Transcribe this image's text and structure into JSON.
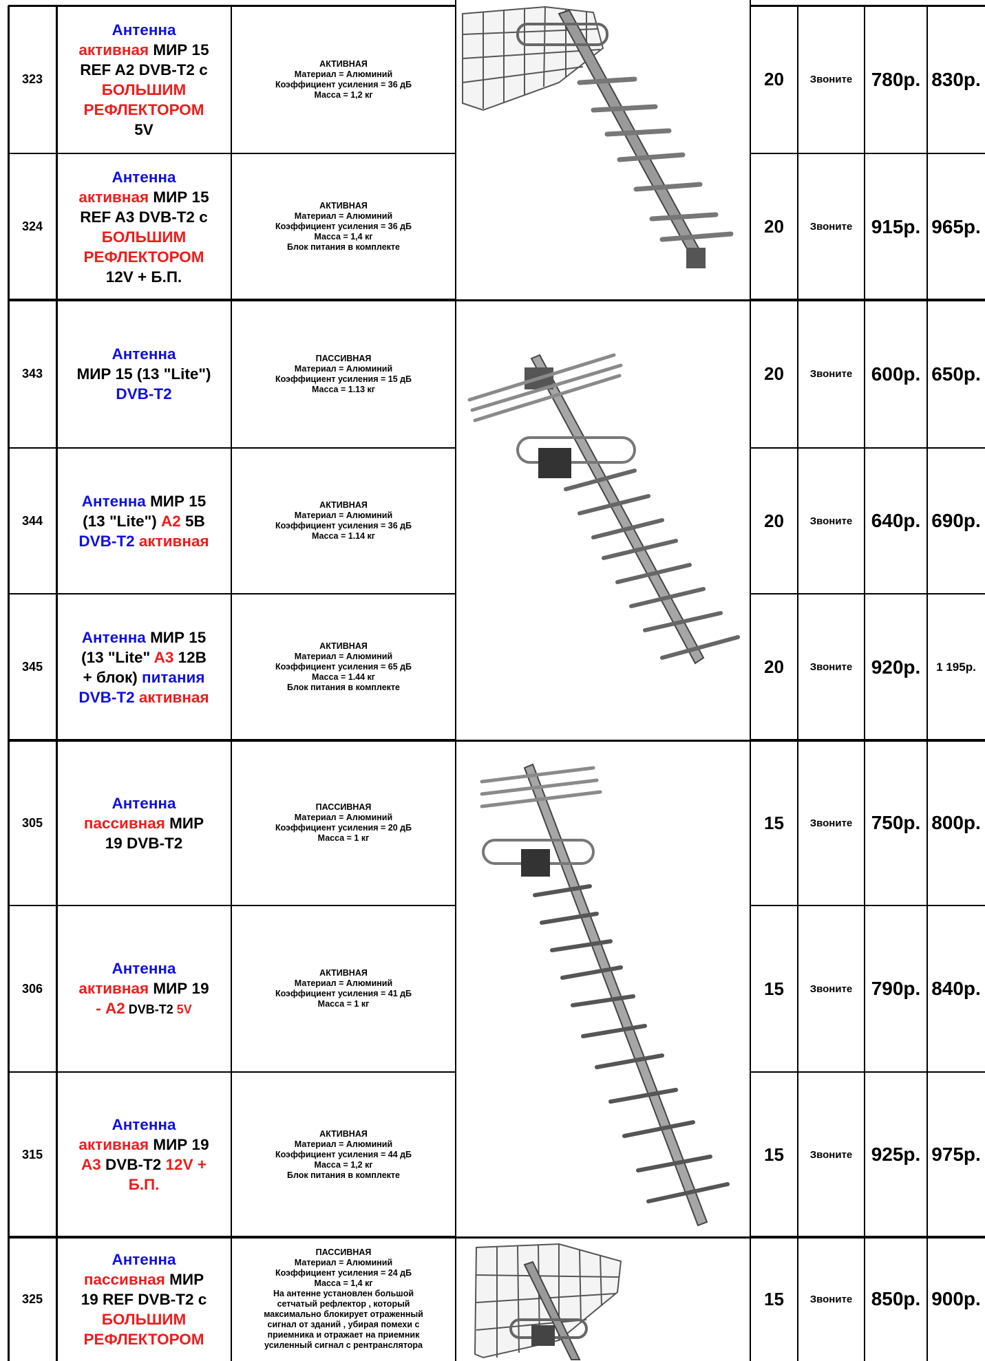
{
  "currency_note": "",
  "rows": [
    {
      "num": "323",
      "name": [
        {
          "t": "Антенна",
          "c": "b"
        },
        {
          "br": true
        },
        {
          "t": "активная",
          "c": "r"
        },
        {
          "t": " МИР 15",
          "c": "k"
        },
        {
          "br": true
        },
        {
          "t": "REF A2 DVB-T2 с",
          "c": "k"
        },
        {
          "br": true
        },
        {
          "t": "БОЛЬШИМ",
          "c": "r"
        },
        {
          "br": true
        },
        {
          "t": "РЕФЛЕКТОРОМ",
          "c": "r"
        },
        {
          "br": true
        },
        {
          "t": "5V",
          "c": "k"
        }
      ],
      "desc": [
        "АКТИВНАЯ",
        "Материал = Алюминий",
        "Коэффициент усиления = 36 дБ",
        "Масса = 1,2 кг"
      ],
      "qty": "20",
      "call": "Звоните",
      "price1": "780р.",
      "price2": "830р."
    },
    {
      "num": "324",
      "name": [
        {
          "t": "Антенна",
          "c": "b"
        },
        {
          "br": true
        },
        {
          "t": "активная",
          "c": "r"
        },
        {
          "t": " МИР 15",
          "c": "k"
        },
        {
          "br": true
        },
        {
          "t": "REF A3 DVB-T2 с",
          "c": "k"
        },
        {
          "br": true
        },
        {
          "t": "БОЛЬШИМ",
          "c": "r"
        },
        {
          "br": true
        },
        {
          "t": "РЕФЛЕКТОРОМ",
          "c": "r"
        },
        {
          "br": true
        },
        {
          "t": "12V + Б.П.",
          "c": "k"
        }
      ],
      "desc": [
        "АКТИВНАЯ",
        "Материал = Алюминий",
        "Коэффициент усиления = 36 дБ",
        "Масса = 1,4 кг",
        "Блок питания в комплекте"
      ],
      "qty": "20",
      "call": "Звоните",
      "price1": "915р.",
      "price2": "965р."
    },
    {
      "num": "343",
      "name": [
        {
          "t": "Антенна",
          "c": "b"
        },
        {
          "br": true
        },
        {
          "t": "МИР 15 (13 \"Lite\")",
          "c": "k"
        },
        {
          "br": true
        },
        {
          "t": "DVB-T2",
          "c": "b"
        }
      ],
      "desc": [
        "ПАССИВНАЯ",
        "Материал = Алюминий",
        "Коэффициент усиления = 15 дБ",
        "Масса = 1.13 кг"
      ],
      "qty": "20",
      "call": "Звоните",
      "price1": "600р.",
      "price2": "650р."
    },
    {
      "num": "344",
      "name": [
        {
          "t": "Антенна",
          "c": "b"
        },
        {
          "t": " МИР 15",
          "c": "k"
        },
        {
          "br": true
        },
        {
          "t": "(13 \"Lite\") ",
          "c": "k"
        },
        {
          "t": "A2",
          "c": "r"
        },
        {
          "t": " 5В",
          "c": "k"
        },
        {
          "br": true
        },
        {
          "t": "DVB-T2",
          "c": "b"
        },
        {
          "t": " активная",
          "c": "r"
        }
      ],
      "desc": [
        "АКТИВНАЯ",
        "Материал = Алюминий",
        "Коэффициент усиления = 36 дБ",
        "Масса = 1.14 кг"
      ],
      "qty": "20",
      "call": "Звоните",
      "price1": "640р.",
      "price2": "690р."
    },
    {
      "num": "345",
      "name": [
        {
          "t": "Антенна",
          "c": "b"
        },
        {
          "t": " МИР 15",
          "c": "k"
        },
        {
          "br": true
        },
        {
          "t": "(13 \"Lite\" ",
          "c": "k"
        },
        {
          "t": "A3",
          "c": "r"
        },
        {
          "t": " 12В",
          "c": "k"
        },
        {
          "br": true
        },
        {
          "t": "+ блок) ",
          "c": "k"
        },
        {
          "t": "питания",
          "c": "b"
        },
        {
          "br": true
        },
        {
          "t": "DVB-T2",
          "c": "b"
        },
        {
          "t": " активная",
          "c": "r"
        }
      ],
      "desc": [
        "АКТИВНАЯ",
        "Материал = Алюминий",
        "Коэффициент усиления = 65 дБ",
        "Масса = 1.44 кг",
        "Блок питания в комплекте"
      ],
      "qty": "20",
      "call": "Звоните",
      "price1": "920р.",
      "price2": "1 195р."
    },
    {
      "num": "305",
      "name": [
        {
          "t": "Антенна",
          "c": "b"
        },
        {
          "br": true
        },
        {
          "t": "пассивная",
          "c": "r"
        },
        {
          "t": " МИР",
          "c": "k"
        },
        {
          "br": true
        },
        {
          "t": "19 DVB-T2",
          "c": "k"
        }
      ],
      "desc": [
        "ПАССИВНАЯ",
        "Материал = Алюминий",
        "Коэффициент усиления = 20 дБ",
        "Масса = 1 кг"
      ],
      "qty": "15",
      "call": "Звоните",
      "price1": "750р.",
      "price2": "800р."
    },
    {
      "num": "306",
      "name": [
        {
          "t": "Антенна",
          "c": "b"
        },
        {
          "br": true
        },
        {
          "t": "активная",
          "c": "r"
        },
        {
          "t": " МИР 19",
          "c": "k"
        },
        {
          "br": true
        },
        {
          "t": "- A2",
          "c": "r"
        },
        {
          "t": " DVB-T2",
          "c": "k",
          "s": "sm"
        },
        {
          "t": " 5V",
          "c": "r",
          "s": "sm"
        }
      ],
      "desc": [
        "АКТИВНАЯ",
        "Материал = Алюминий",
        "Коэффициент усиления = 41 дБ",
        "Масса = 1 кг"
      ],
      "qty": "15",
      "call": "Звоните",
      "price1": "790р.",
      "price2": "840р."
    },
    {
      "num": "315",
      "name": [
        {
          "t": "Антенна",
          "c": "b"
        },
        {
          "br": true
        },
        {
          "t": "активная",
          "c": "r"
        },
        {
          "t": " МИР 19",
          "c": "k"
        },
        {
          "br": true
        },
        {
          "t": "A3",
          "c": "r"
        },
        {
          "t": " DVB-T2",
          "c": "k"
        },
        {
          "t": " 12V +",
          "c": "r"
        },
        {
          "br": true
        },
        {
          "t": "Б.П.",
          "c": "r"
        }
      ],
      "desc": [
        "АКТИВНАЯ",
        "Материал = Алюминий",
        "Коэффициент усиления = 44 дБ",
        "Масса = 1,2 кг",
        "Блок питания в комплекте"
      ],
      "qty": "15",
      "call": "Звоните",
      "price1": "925р.",
      "price2": "975р."
    },
    {
      "num": "325",
      "name": [
        {
          "t": "Антенна",
          "c": "b"
        },
        {
          "br": true
        },
        {
          "t": "пассивная",
          "c": "r"
        },
        {
          "t": " МИР",
          "c": "k"
        },
        {
          "br": true
        },
        {
          "t": "19 REF DVB-T2 с",
          "c": "k"
        },
        {
          "br": true
        },
        {
          "t": "БОЛЬШИМ",
          "c": "r"
        },
        {
          "br": true
        },
        {
          "t": "РЕФЛЕКТОРОМ",
          "c": "r"
        }
      ],
      "desc": [
        "ПАССИВНАЯ",
        "Материал = Алюминий",
        "Коэффициент усиления = 24 дБ",
        "Масса = 1,4 кг",
        "На антенне установлен большой",
        "сетчатый рефлектор , который",
        "максимально блокирует отраженный",
        "сигнал от зданий , убирая помехи с",
        "приемника и отражает на приемник",
        "усиленный сигнал с рентранслятора"
      ],
      "qty": "15",
      "call": "Звоните",
      "price1": "850р.",
      "price2": "900р."
    }
  ],
  "images": [
    {
      "icon": "antenna-mir15-ref-photo",
      "rows": "323-324"
    },
    {
      "icon": "antenna-mir15-lite-photo",
      "rows": "343-345"
    },
    {
      "icon": "antenna-mir19-photo",
      "rows": "305-315"
    },
    {
      "icon": "antenna-mir19-ref-photo",
      "rows": "325"
    }
  ]
}
